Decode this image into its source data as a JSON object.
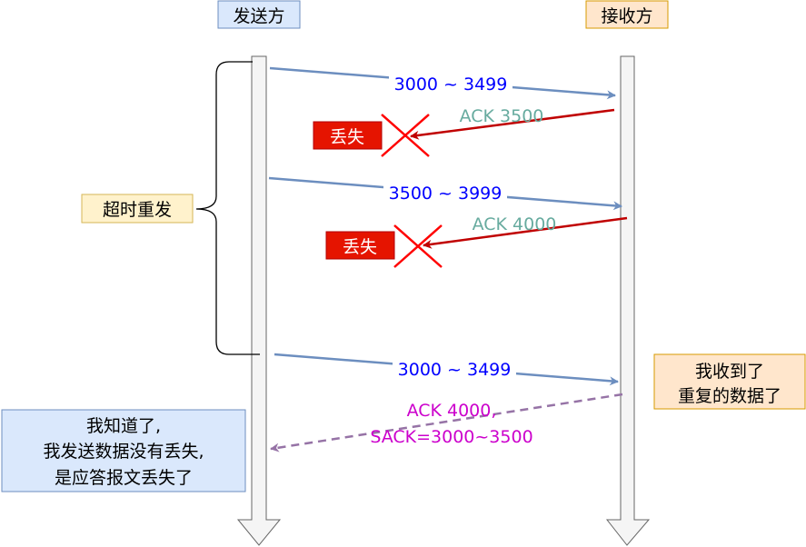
{
  "actors": {
    "sender": "发送方",
    "receiver": "接收方"
  },
  "timeout_label": "超时重发",
  "messages": [
    {
      "label": "3000 ~ 3499",
      "direction": "sender-to-receiver",
      "status": "delivered"
    },
    {
      "label": "ACK 3500",
      "direction": "receiver-to-sender",
      "status": "lost",
      "lost_label": "丢失"
    },
    {
      "label": "3500 ~ 3999",
      "direction": "sender-to-receiver",
      "status": "delivered"
    },
    {
      "label": "ACK 4000",
      "direction": "receiver-to-sender",
      "status": "lost",
      "lost_label": "丢失"
    },
    {
      "label": "3000 ~ 3499",
      "direction": "sender-to-receiver",
      "status": "delivered"
    },
    {
      "label_line1": "ACK 4000,",
      "label_line2": "SACK=3000~3500",
      "direction": "receiver-to-sender",
      "status": "delivered",
      "style": "dashed"
    }
  ],
  "receiver_note": [
    "我收到了",
    "重复的数据了"
  ],
  "sender_note": [
    "我知道了,",
    "我发送数据没有丢失,",
    "是应答报文丢失了"
  ],
  "colors": {
    "data_arrow": "#6C8EBF",
    "data_text": "#0000FF",
    "ack_arrow": "#C00000",
    "ack_text": "#67AB9F",
    "lost_box": "#E51400",
    "sack_arrow": "#9673A6",
    "sack_text": "#CC00CC"
  }
}
